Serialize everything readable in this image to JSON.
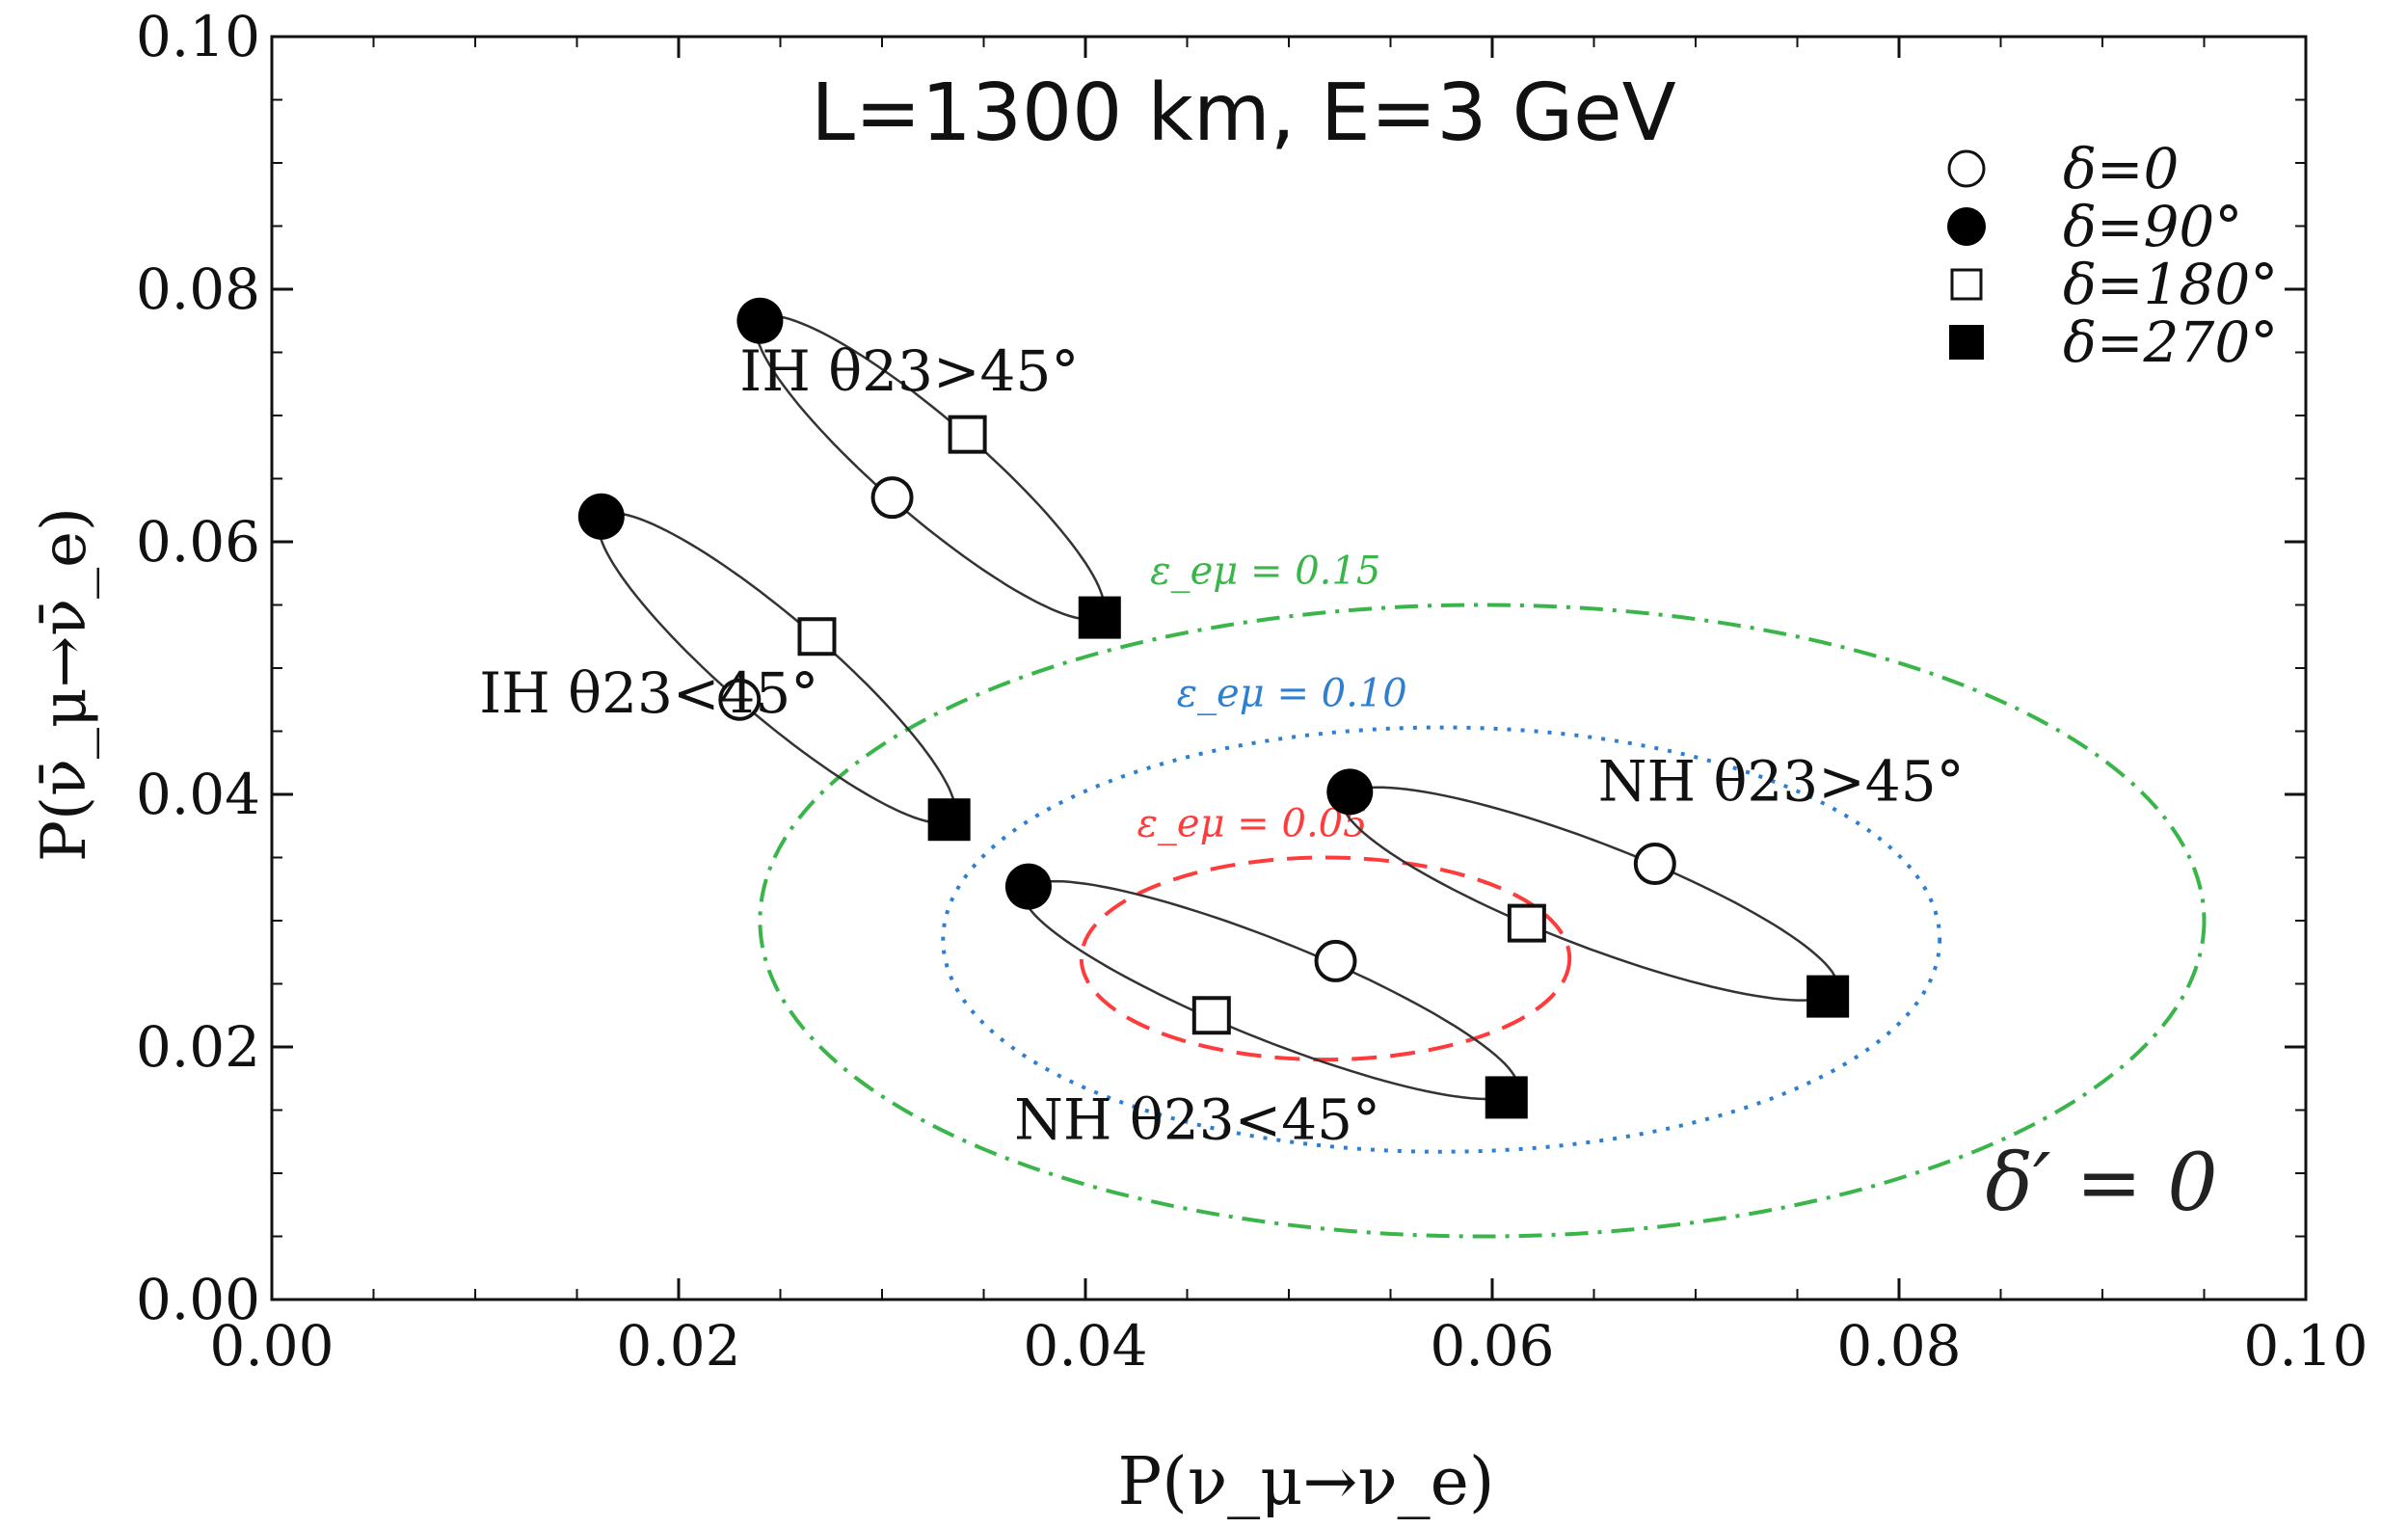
{
  "chart_data": {
    "type": "scatter",
    "title": "L=1300 km,   E=3 GeV",
    "xlabel": "P(ν_μ→ν_e)",
    "ylabel": "P(ν̄_μ→ν̄_e)",
    "xlim": [
      0,
      0.1
    ],
    "ylim": [
      0,
      0.1
    ],
    "xticks": [
      "0.00",
      "0.02",
      "0.04",
      "0.06",
      "0.08",
      "0.10"
    ],
    "yticks": [
      "0.00",
      "0.02",
      "0.04",
      "0.06",
      "0.08",
      "0.10"
    ],
    "legend_position": "top-right",
    "legend": [
      {
        "marker": "open-circle",
        "label": "δ=0"
      },
      {
        "marker": "filled-circle",
        "label": "δ=90°"
      },
      {
        "marker": "open-square",
        "label": "δ=180°"
      },
      {
        "marker": "filled-square",
        "label": "δ=270°"
      }
    ],
    "delta_prime_label": "δ′ = 0",
    "ellipses": [
      {
        "name": "IH θ23>45°",
        "label": "IH θ23>45°",
        "points": {
          "d0": [
            0.0305,
            0.0635
          ],
          "d90": [
            0.024,
            0.0775
          ],
          "d180": [
            0.0342,
            0.0685
          ],
          "d270": [
            0.0407,
            0.054
          ]
        }
      },
      {
        "name": "IH θ23<45°",
        "label": "IH θ23<45°",
        "points": {
          "d0": [
            0.023,
            0.0475
          ],
          "d90": [
            0.0162,
            0.062
          ],
          "d180": [
            0.0268,
            0.0525
          ],
          "d270": [
            0.0333,
            0.038
          ]
        }
      },
      {
        "name": "NH θ23>45°",
        "label": "NH θ23>45°",
        "points": {
          "d0": [
            0.068,
            0.0345
          ],
          "d90": [
            0.053,
            0.0402
          ],
          "d180": [
            0.0617,
            0.0298
          ],
          "d270": [
            0.0765,
            0.024
          ]
        }
      },
      {
        "name": "NH θ23<45°",
        "label": "NH θ23<45°",
        "points": {
          "d0": [
            0.0523,
            0.0268
          ],
          "d90": [
            0.0372,
            0.0327
          ],
          "d180": [
            0.0462,
            0.0225
          ],
          "d270": [
            0.0607,
            0.016
          ]
        }
      }
    ],
    "epsilon_contours": [
      {
        "label": "ε_eμ = 0.05",
        "color": "#ff3b3b",
        "style": "dashed",
        "center": [
          0.0518,
          0.027
        ],
        "radii": [
          0.012,
          0.008
        ]
      },
      {
        "label": "ε_eμ = 0.10",
        "color": "#2f7fd0",
        "style": "dotted",
        "center": [
          0.0575,
          0.0285
        ],
        "radii": [
          0.0245,
          0.0168
        ]
      },
      {
        "label": "ε_eμ = 0.15",
        "color": "#39b54a",
        "style": "dashdot",
        "center": [
          0.0595,
          0.03
        ],
        "radii": [
          0.0355,
          0.025
        ]
      }
    ]
  }
}
